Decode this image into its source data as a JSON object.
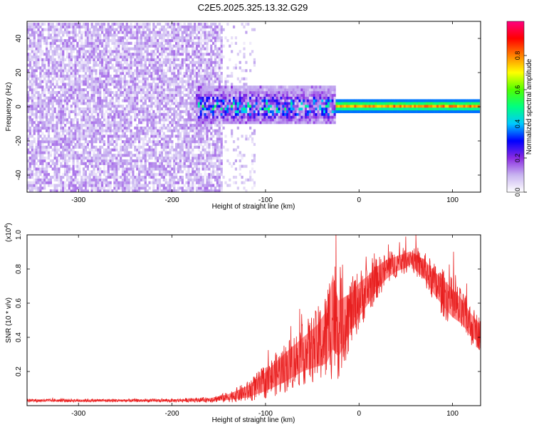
{
  "title": "C2E5.2025.325.13.32.G29",
  "chart_data": [
    {
      "type": "heatmap",
      "name": "spectrogram",
      "xlabel": "Height of straight line (km)",
      "ylabel": "Frequency (Hz)",
      "xlim": [
        -355,
        130
      ],
      "ylim": [
        -50,
        50
      ],
      "xticks": [
        -300,
        -200,
        -100,
        0,
        100
      ],
      "yticks": [
        -40,
        -20,
        0,
        20,
        40
      ],
      "colorbar": {
        "label": "Normalized spectral amplitude",
        "ticks": [
          0.0,
          0.2,
          0.4,
          0.6,
          0.8
        ],
        "range": [
          0,
          1
        ],
        "colors": [
          "#ffffff",
          "#c8b4f0",
          "#8a2be2",
          "#0000ff",
          "#00c8ff",
          "#00ff80",
          "#50ff00",
          "#ffff00",
          "#ff8000",
          "#ff0000",
          "#ff0080"
        ]
      },
      "regions": [
        {
          "label": "noise",
          "x": [
            -355,
            -145
          ],
          "freq": [
            -50,
            50
          ],
          "amplitude": [
            0.0,
            0.15
          ]
        },
        {
          "label": "sparse-noise",
          "x": [
            -145,
            -110
          ],
          "freq": [
            -50,
            50
          ],
          "amplitude": [
            0.0,
            0.06
          ]
        },
        {
          "label": "onset",
          "x": [
            -175,
            -25
          ],
          "freq": [
            -10,
            12
          ],
          "amplitude": [
            0.1,
            0.45
          ]
        },
        {
          "label": "signal",
          "x": [
            -25,
            130
          ],
          "freq": [
            -3,
            4
          ],
          "amplitude": [
            0.35,
            0.85
          ]
        }
      ]
    },
    {
      "type": "line",
      "name": "snr",
      "xlabel": "Height of straight line (km)",
      "ylabel": "SNR (10 * v/v)",
      "yscale_label": "(x10",
      "yscale_exponent": "4",
      "yscale_suffix": ")",
      "xlim": [
        -355,
        130
      ],
      "ylim": [
        0,
        1.0
      ],
      "xticks": [
        -300,
        -200,
        -100,
        0,
        100
      ],
      "yticks": [
        0.2,
        0.4,
        0.6,
        0.8,
        1.0
      ],
      "series": [
        {
          "name": "SNR",
          "color": "#ff0000",
          "x": [
            -355,
            -300,
            -250,
            -200,
            -160,
            -140,
            -120,
            -100,
            -80,
            -60,
            -45,
            -35,
            -28,
            -22,
            -15,
            -8,
            0,
            10,
            20,
            30,
            40,
            50,
            55,
            60,
            70,
            80,
            90,
            100,
            110,
            120,
            130
          ],
          "y": [
            0.03,
            0.03,
            0.03,
            0.03,
            0.035,
            0.05,
            0.08,
            0.14,
            0.22,
            0.3,
            0.35,
            0.4,
            0.55,
            0.45,
            0.5,
            0.55,
            0.62,
            0.68,
            0.75,
            0.8,
            0.83,
            0.85,
            0.87,
            0.84,
            0.8,
            0.72,
            0.66,
            0.6,
            0.55,
            0.47,
            0.42
          ],
          "spread": [
            0.01,
            0.01,
            0.01,
            0.01,
            0.015,
            0.03,
            0.06,
            0.1,
            0.15,
            0.18,
            0.22,
            0.28,
            0.4,
            0.3,
            0.25,
            0.2,
            0.18,
            0.15,
            0.12,
            0.1,
            0.08,
            0.08,
            0.06,
            0.08,
            0.1,
            0.12,
            0.14,
            0.15,
            0.13,
            0.12,
            0.1
          ]
        }
      ]
    }
  ]
}
